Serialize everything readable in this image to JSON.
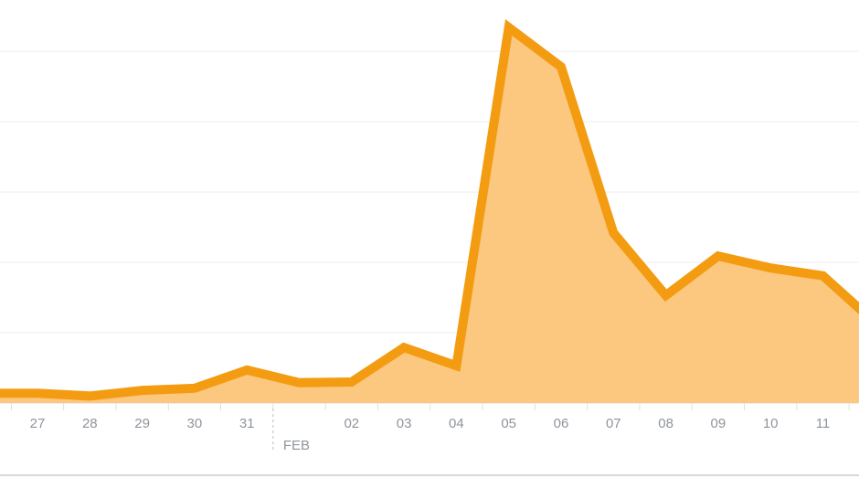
{
  "chart_data": {
    "type": "area",
    "categories": [
      null,
      "27",
      "28",
      "29",
      "30",
      "31",
      null,
      "02",
      "03",
      "04",
      "05",
      "06",
      "07",
      "08",
      "09",
      "10",
      "11",
      null
    ],
    "values": [
      0.14,
      0.14,
      0.1,
      0.18,
      0.21,
      0.47,
      0.29,
      0.3,
      0.79,
      0.53,
      5.34,
      4.78,
      2.42,
      1.53,
      2.09,
      1.92,
      1.81,
      1.14
    ],
    "color": "#f39c12",
    "fill": "#fcc77f",
    "ylim": [
      0,
      5.73
    ],
    "yticks": [
      0,
      1,
      2,
      3,
      4,
      5
    ],
    "grid": true,
    "annotations": [
      {
        "text": "FEB",
        "index": 6
      }
    ]
  }
}
